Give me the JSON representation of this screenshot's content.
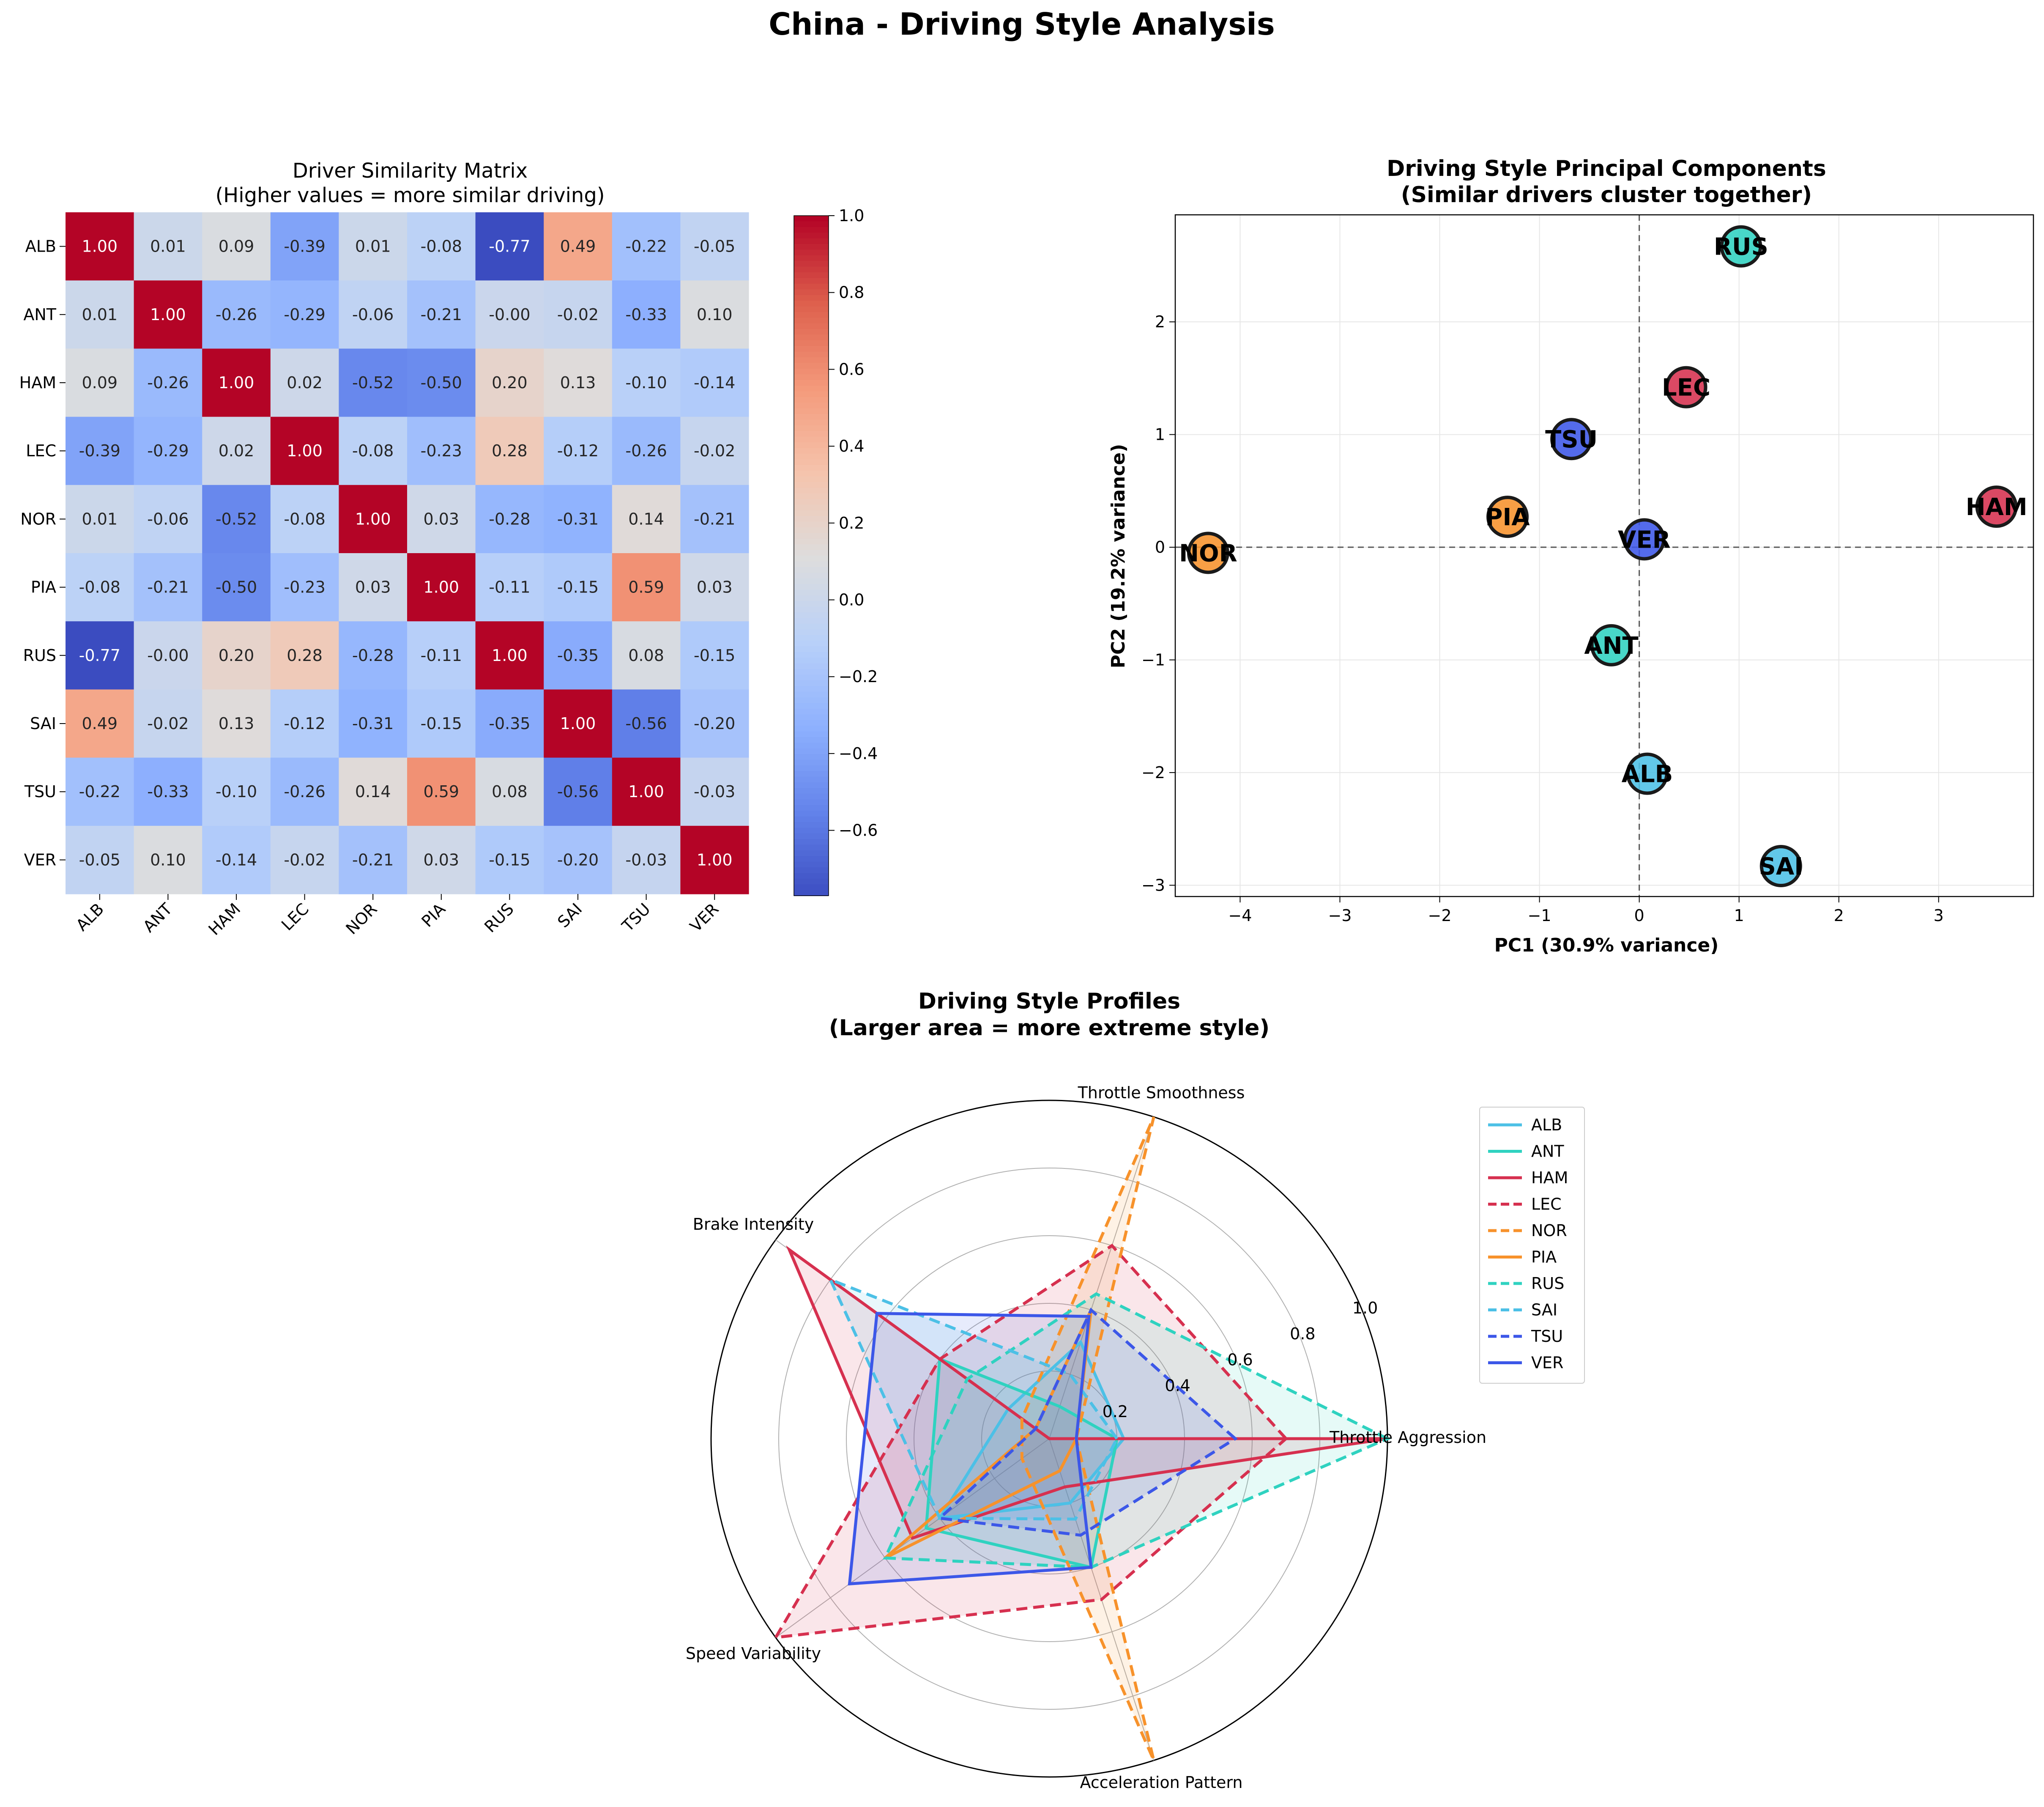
{
  "figure": {
    "suptitle": "China - Driving Style Analysis"
  },
  "chart_data": [
    {
      "type": "heatmap",
      "title": "Driver Similarity Matrix",
      "subtitle": "(Higher values = more similar driving)",
      "labels": [
        "ALB",
        "ANT",
        "HAM",
        "LEC",
        "NOR",
        "PIA",
        "RUS",
        "SAI",
        "TSU",
        "VER"
      ],
      "values": [
        [
          1.0,
          0.01,
          0.09,
          -0.39,
          0.01,
          -0.08,
          -0.77,
          0.49,
          -0.22,
          -0.05
        ],
        [
          0.01,
          1.0,
          -0.26,
          -0.29,
          -0.06,
          -0.21,
          -0.0,
          -0.02,
          -0.33,
          0.1
        ],
        [
          0.09,
          -0.26,
          1.0,
          0.02,
          -0.52,
          -0.5,
          0.2,
          0.13,
          -0.1,
          -0.14
        ],
        [
          -0.39,
          -0.29,
          0.02,
          1.0,
          -0.08,
          -0.23,
          0.28,
          -0.12,
          -0.26,
          -0.02
        ],
        [
          0.01,
          -0.06,
          -0.52,
          -0.08,
          1.0,
          0.03,
          -0.28,
          -0.31,
          0.14,
          -0.21
        ],
        [
          -0.08,
          -0.21,
          -0.5,
          -0.23,
          0.03,
          1.0,
          -0.11,
          -0.15,
          0.59,
          0.03
        ],
        [
          -0.77,
          -0.0,
          0.2,
          0.28,
          -0.28,
          -0.11,
          1.0,
          -0.35,
          0.08,
          -0.15
        ],
        [
          0.49,
          -0.02,
          0.13,
          -0.12,
          -0.31,
          -0.15,
          -0.35,
          1.0,
          -0.56,
          -0.2
        ],
        [
          -0.22,
          -0.33,
          -0.1,
          -0.26,
          0.14,
          0.59,
          0.08,
          -0.56,
          1.0,
          -0.03
        ],
        [
          -0.05,
          0.1,
          -0.14,
          -0.02,
          -0.21,
          0.03,
          -0.15,
          -0.2,
          -0.03,
          1.0
        ]
      ],
      "display": [
        [
          "1.00",
          "0.01",
          "0.09",
          "-0.39",
          "0.01",
          "-0.08",
          "-0.77",
          "0.49",
          "-0.22",
          "-0.05"
        ],
        [
          "0.01",
          "1.00",
          "-0.26",
          "-0.29",
          "-0.06",
          "-0.21",
          "-0.00",
          "-0.02",
          "-0.33",
          "0.10"
        ],
        [
          "0.09",
          "-0.26",
          "1.00",
          "0.02",
          "-0.52",
          "-0.50",
          "0.20",
          "0.13",
          "-0.10",
          "-0.14"
        ],
        [
          "-0.39",
          "-0.29",
          "0.02",
          "1.00",
          "-0.08",
          "-0.23",
          "0.28",
          "-0.12",
          "-0.26",
          "-0.02"
        ],
        [
          "0.01",
          "-0.06",
          "-0.52",
          "-0.08",
          "1.00",
          "0.03",
          "-0.28",
          "-0.31",
          "0.14",
          "-0.21"
        ],
        [
          "-0.08",
          "-0.21",
          "-0.50",
          "-0.23",
          "0.03",
          "1.00",
          "-0.11",
          "-0.15",
          "0.59",
          "0.03"
        ],
        [
          "-0.77",
          "-0.00",
          "0.20",
          "0.28",
          "-0.28",
          "-0.11",
          "1.00",
          "-0.35",
          "0.08",
          "-0.15"
        ],
        [
          "0.49",
          "-0.02",
          "0.13",
          "-0.12",
          "-0.31",
          "-0.15",
          "-0.35",
          "1.00",
          "-0.56",
          "-0.20"
        ],
        [
          "-0.22",
          "-0.33",
          "-0.10",
          "-0.26",
          "0.14",
          "0.59",
          "0.08",
          "-0.56",
          "1.00",
          "-0.03"
        ],
        [
          "-0.05",
          "0.10",
          "-0.14",
          "-0.02",
          "-0.21",
          "0.03",
          "-0.15",
          "-0.20",
          "-0.03",
          "1.00"
        ]
      ],
      "colorbar": {
        "min": -0.77,
        "max": 1.0,
        "ticks": [
          -0.6,
          -0.4,
          -0.2,
          0.0,
          0.2,
          0.4,
          0.6,
          0.8,
          1.0
        ],
        "tick_labels": [
          "−0.6",
          "−0.4",
          "−0.2",
          "0.0",
          "0.2",
          "0.4",
          "0.6",
          "0.8",
          "1.0"
        ],
        "colormap": "coolwarm"
      }
    },
    {
      "type": "scatter",
      "title": "Driving Style Principal Components",
      "subtitle": "(Similar drivers cluster together)",
      "xlabel": "PC1 (30.9% variance)",
      "ylabel": "PC2 (19.2% variance)",
      "xlim": [
        -4.65,
        3.95
      ],
      "ylim": [
        -3.1,
        2.95
      ],
      "xticks": [
        -4,
        -3,
        -2,
        -1,
        0,
        1,
        2,
        3
      ],
      "xtick_labels": [
        "−4",
        "−3",
        "−2",
        "−1",
        "0",
        "1",
        "2",
        "3"
      ],
      "yticks": [
        -3,
        -2,
        -1,
        0,
        1,
        2
      ],
      "ytick_labels": [
        "−3",
        "−2",
        "−1",
        "0",
        "1",
        "2"
      ],
      "grid": true,
      "points": [
        {
          "label": "RUS",
          "x": 1.02,
          "y": 2.67,
          "color": "#2fd2c0"
        },
        {
          "label": "LEC",
          "x": 0.47,
          "y": 1.42,
          "color": "#d6304f"
        },
        {
          "label": "TSU",
          "x": -0.68,
          "y": 0.96,
          "color": "#3c57e8"
        },
        {
          "label": "HAM",
          "x": 3.58,
          "y": 0.36,
          "color": "#d6304f"
        },
        {
          "label": "PIA",
          "x": -1.32,
          "y": 0.27,
          "color": "#f7922b"
        },
        {
          "label": "NOR",
          "x": -4.32,
          "y": -0.05,
          "color": "#f7922b"
        },
        {
          "label": "VER",
          "x": 0.05,
          "y": 0.07,
          "color": "#3c57e8"
        },
        {
          "label": "ANT",
          "x": -0.28,
          "y": -0.87,
          "color": "#2fd2c0"
        },
        {
          "label": "ALB",
          "x": 0.08,
          "y": -2.01,
          "color": "#4cc0e6"
        },
        {
          "label": "SAI",
          "x": 1.42,
          "y": -2.83,
          "color": "#4cc0e6"
        }
      ]
    },
    {
      "type": "radar",
      "title": "Driving Style Profiles",
      "subtitle": "(Larger area = more extreme style)",
      "axes": [
        "Throttle Aggression",
        "Throttle Smoothness",
        "Brake Intensity",
        "Speed Variability",
        "Acceleration Pattern"
      ],
      "rlim": [
        0,
        1.0
      ],
      "rticks": [
        0.2,
        0.4,
        0.6,
        0.8,
        1.0
      ],
      "rtick_labels": [
        "0.2",
        "0.4",
        "0.6",
        "0.8",
        "1.0"
      ],
      "legend_position": "right",
      "series": [
        {
          "name": "ALB",
          "values": [
            0.22,
            0.3,
            0.15,
            0.4,
            0.2
          ],
          "color": "#4cc0e6",
          "dashed": false
        },
        {
          "name": "ANT",
          "values": [
            0.2,
            0.1,
            0.4,
            0.45,
            0.4
          ],
          "color": "#2fd2c0",
          "dashed": false
        },
        {
          "name": "HAM",
          "values": [
            1.0,
            0.0,
            0.95,
            0.5,
            0.15
          ],
          "color": "#d6304f",
          "dashed": false
        },
        {
          "name": "LEC",
          "values": [
            0.7,
            0.6,
            0.4,
            1.0,
            0.5
          ],
          "color": "#d6304f",
          "dashed": true
        },
        {
          "name": "NOR",
          "values": [
            0.08,
            1.0,
            0.1,
            0.1,
            1.0
          ],
          "color": "#f7922b",
          "dashed": true
        },
        {
          "name": "PIA",
          "values": [
            0.08,
            0.4,
            0.05,
            0.6,
            0.1
          ],
          "color": "#f7922b",
          "dashed": false
        },
        {
          "name": "RUS",
          "values": [
            1.0,
            0.45,
            0.3,
            0.6,
            0.4
          ],
          "color": "#2fd2c0",
          "dashed": true
        },
        {
          "name": "SAI",
          "values": [
            0.2,
            0.2,
            0.8,
            0.4,
            0.25
          ],
          "color": "#4cc0e6",
          "dashed": true
        },
        {
          "name": "TSU",
          "values": [
            0.55,
            0.4,
            0.05,
            0.4,
            0.3
          ],
          "color": "#3c57e8",
          "dashed": true
        },
        {
          "name": "VER",
          "values": [
            0.08,
            0.38,
            0.63,
            0.73,
            0.4
          ],
          "color": "#3c57e8",
          "dashed": false
        }
      ]
    }
  ]
}
